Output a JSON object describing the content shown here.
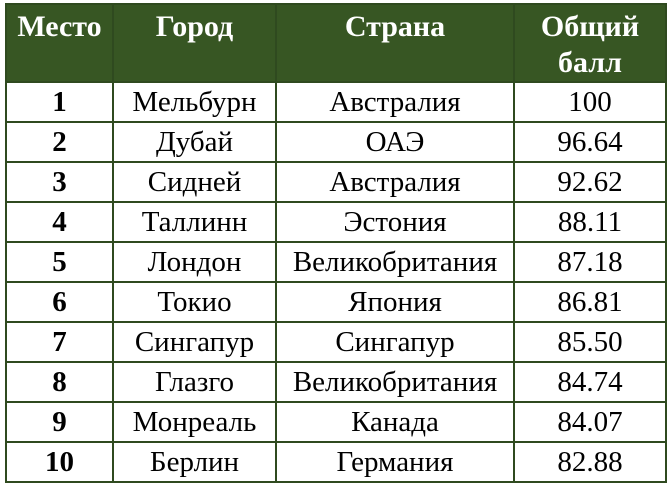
{
  "table": {
    "headers": {
      "rank": "Место",
      "city": "Город",
      "country": "Страна",
      "score_line1": "Общий",
      "score_line2": "балл"
    },
    "rows": [
      {
        "rank": "1",
        "city": "Мельбурн",
        "country": "Австралия",
        "score": "100"
      },
      {
        "rank": "2",
        "city": "Дубай",
        "country": "ОАЭ",
        "score": "96.64"
      },
      {
        "rank": "3",
        "city": "Сидней",
        "country": "Австралия",
        "score": "92.62"
      },
      {
        "rank": "4",
        "city": "Таллинн",
        "country": "Эстония",
        "score": "88.11"
      },
      {
        "rank": "5",
        "city": "Лондон",
        "country": "Великобритания",
        "score": "87.18"
      },
      {
        "rank": "6",
        "city": "Токио",
        "country": "Япония",
        "score": "86.81"
      },
      {
        "rank": "7",
        "city": "Сингапур",
        "country": "Сингапур",
        "score": "85.50"
      },
      {
        "rank": "8",
        "city": "Глазго",
        "country": "Великобритания",
        "score": "84.74"
      },
      {
        "rank": "9",
        "city": "Монреаль",
        "country": "Канада",
        "score": "84.07"
      },
      {
        "rank": "10",
        "city": "Берлин",
        "country": "Германия",
        "score": "82.88"
      }
    ],
    "colors": {
      "header_background": "#375623",
      "header_text": "#ffffff",
      "border": "#2f4a1f"
    }
  }
}
